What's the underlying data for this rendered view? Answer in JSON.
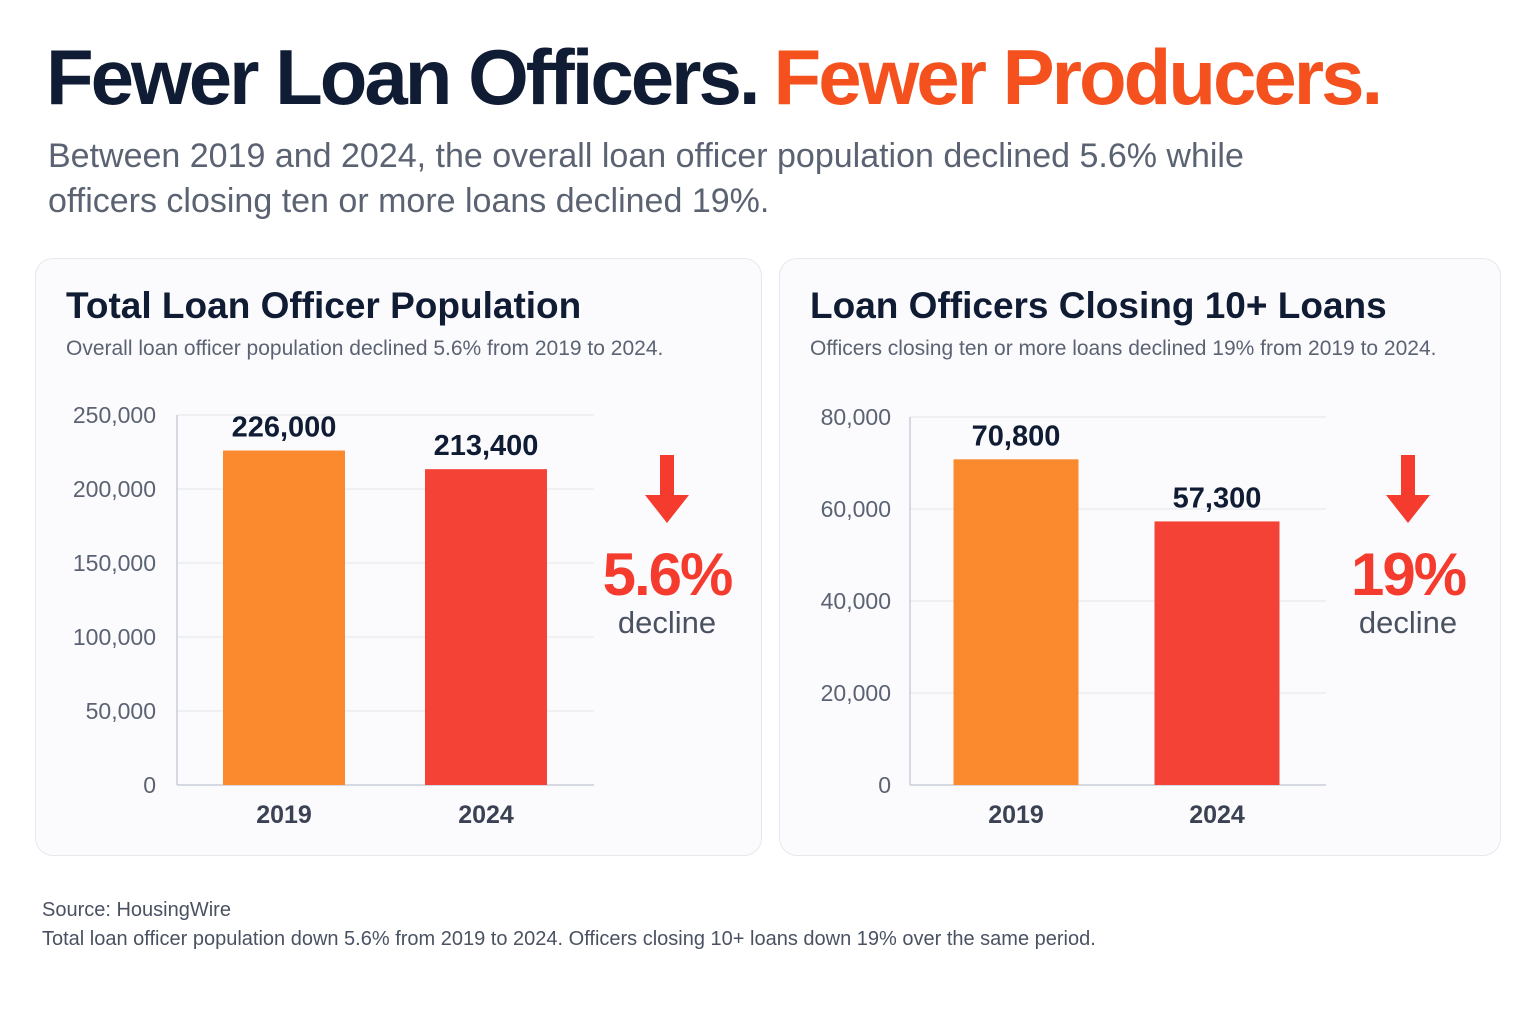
{
  "headline": {
    "part1": "Fewer Loan Officers.",
    "part2": "Fewer Producers."
  },
  "subtitle": "Between 2019 and 2024, the overall loan officer population declined 5.6% while officers closing ten or more loans declined 19%.",
  "colors": {
    "navy": "#0f1c33",
    "accent": "#f4511e",
    "bar_2019": "#fb8a2e",
    "bar_2024": "#f44336",
    "decline": "#f43b2e"
  },
  "chart_data": [
    {
      "type": "bar",
      "title": "Total Loan Officer Population",
      "subtitle": "Overall loan officer population declined 5.6% from 2019 to 2024.",
      "categories": [
        "2019",
        "2024"
      ],
      "values": [
        226000,
        213400
      ],
      "value_labels": [
        "226,000",
        "213,400"
      ],
      "ylim": [
        0,
        250000
      ],
      "yticks": [
        0,
        50000,
        100000,
        150000,
        200000,
        250000
      ],
      "ytick_labels": [
        "0",
        "50,000",
        "100,000",
        "150,000",
        "200,000",
        "250,000"
      ],
      "grid": true,
      "callout": {
        "value": "5.6%",
        "label": "decline",
        "icon": "down-arrow-icon"
      }
    },
    {
      "type": "bar",
      "title": "Loan Officers Closing 10+ Loans",
      "subtitle": "Officers closing ten or more loans declined 19% from 2019 to 2024.",
      "categories": [
        "2019",
        "2024"
      ],
      "values": [
        70800,
        57300
      ],
      "value_labels": [
        "70,800",
        "57,300"
      ],
      "ylim": [
        0,
        80000
      ],
      "yticks": [
        0,
        20000,
        40000,
        60000,
        80000
      ],
      "ytick_labels": [
        "0",
        "20,000",
        "40,000",
        "60,000",
        "80,000"
      ],
      "grid": true,
      "callout": {
        "value": "19%",
        "label": "decline",
        "icon": "down-arrow-icon"
      }
    }
  ],
  "footer": {
    "source": "Source: HousingWire",
    "note": "Total loan officer population down 5.6% from 2019 to 2024. Officers closing 10+ loans down 19% over the same period."
  }
}
